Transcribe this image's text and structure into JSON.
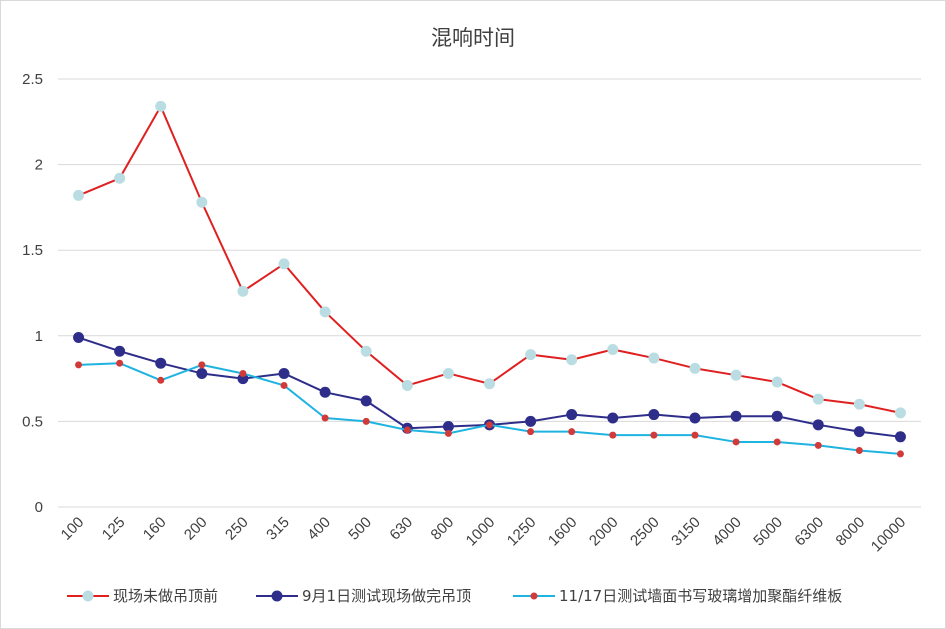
{
  "chart_data": {
    "type": "line",
    "title": "混响时间",
    "xlabel": "",
    "ylabel": "",
    "ylim": [
      0,
      2.5
    ],
    "yticks": [
      "0",
      "0.5",
      "1",
      "1.5",
      "2",
      "2.5"
    ],
    "grid": true,
    "legend_position": "bottom",
    "categories": [
      "100",
      "125",
      "160",
      "200",
      "250",
      "315",
      "400",
      "500",
      "630",
      "800",
      "1000",
      "1250",
      "1600",
      "2000",
      "2500",
      "3150",
      "4000",
      "5000",
      "6300",
      "8000",
      "10000"
    ],
    "series": [
      {
        "name": "现场未做吊顶前",
        "line_color": "#e02020",
        "marker_color": "#b9dde2",
        "marker": "large",
        "values": [
          1.82,
          1.92,
          2.34,
          1.78,
          1.26,
          1.42,
          1.14,
          0.91,
          0.71,
          0.78,
          0.72,
          0.89,
          0.86,
          0.92,
          0.87,
          0.81,
          0.77,
          0.73,
          0.63,
          0.6,
          0.55
        ]
      },
      {
        "name": "9月1日测试现场做完吊顶",
        "line_color": "#2e2e8a",
        "marker_color": "#2e2e8a",
        "marker": "large",
        "values": [
          0.99,
          0.91,
          0.84,
          0.78,
          0.75,
          0.78,
          0.67,
          0.62,
          0.46,
          0.47,
          0.48,
          0.5,
          0.54,
          0.52,
          0.54,
          0.52,
          0.53,
          0.53,
          0.48,
          0.44,
          0.41
        ]
      },
      {
        "name": "11/17日测试墙面书写玻璃增加聚酯纤维板",
        "line_color": "#1fb4e0",
        "marker_color": "#d23a3a",
        "marker": "small",
        "values": [
          0.83,
          0.84,
          0.74,
          0.83,
          0.78,
          0.71,
          0.52,
          0.5,
          0.45,
          0.43,
          0.48,
          0.44,
          0.44,
          0.42,
          0.42,
          0.42,
          0.38,
          0.38,
          0.36,
          0.33,
          0.31
        ]
      }
    ]
  }
}
